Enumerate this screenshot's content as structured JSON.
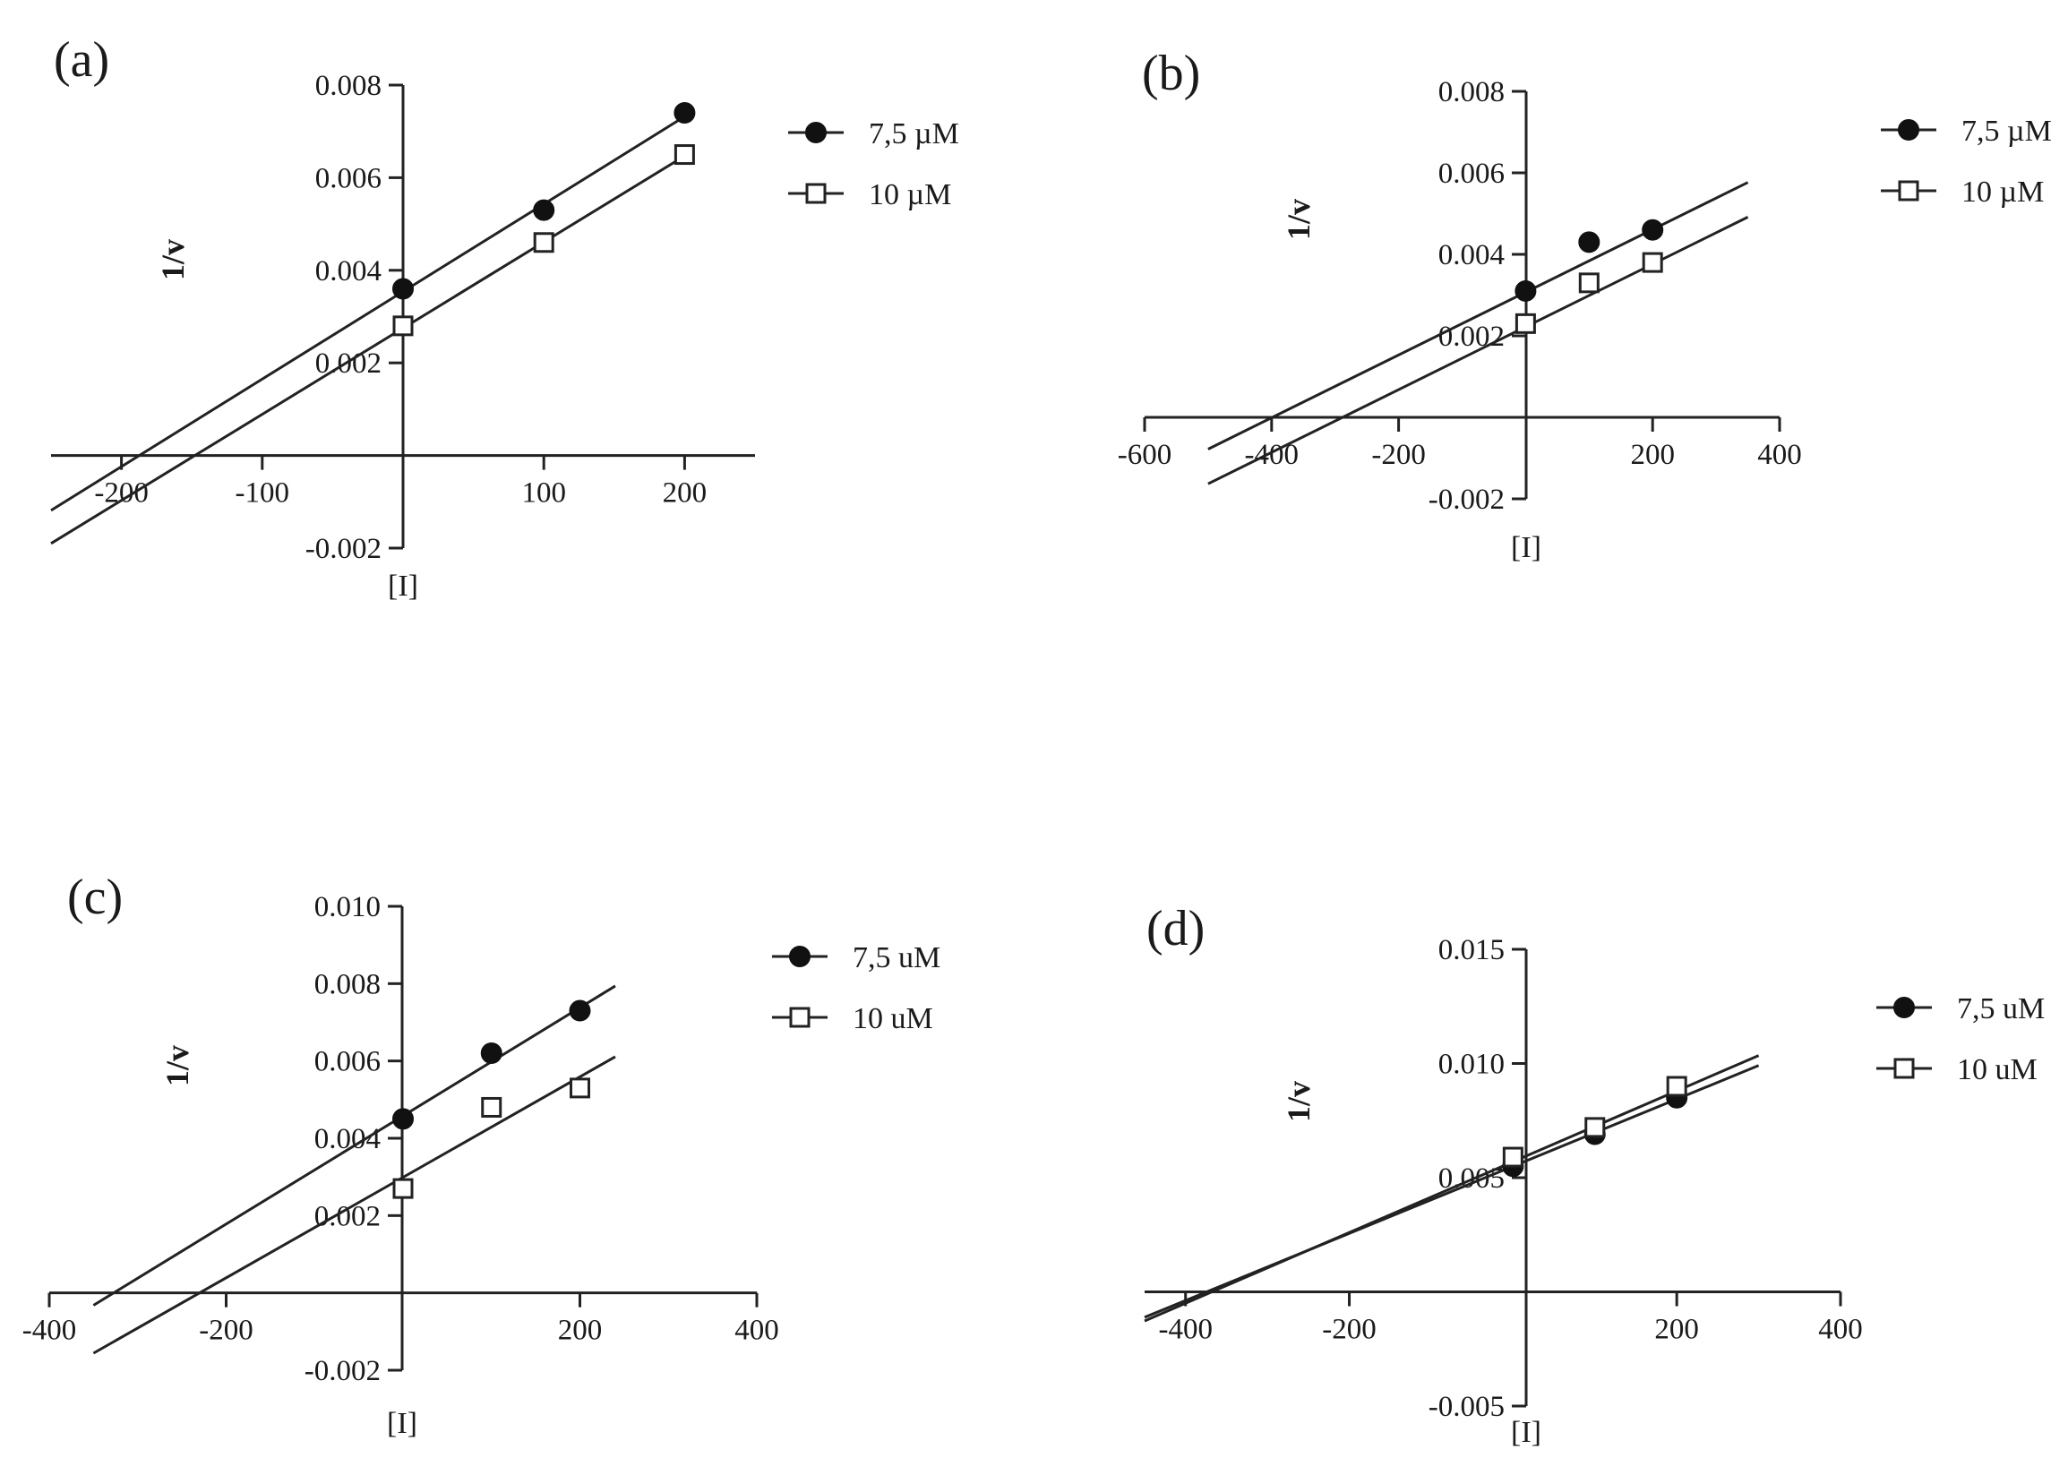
{
  "chart_data": [
    {
      "id": "a",
      "type": "line",
      "label": "(a)",
      "xlabel": "[I]",
      "ylabel": "1/v",
      "xlim": [
        -250,
        250
      ],
      "ylim": [
        -0.002,
        0.008
      ],
      "xticks": [
        -200,
        -100,
        100,
        200
      ],
      "xtick_labels": [
        "-200",
        "-100",
        "100",
        "200"
      ],
      "yticks": [
        -0.002,
        0.002,
        0.004,
        0.006,
        0.008
      ],
      "ytick_labels": [
        "-0.002",
        "0.002",
        "0.004",
        "0.006",
        "0.008"
      ],
      "legend": [
        "7,5 µM",
        "10 µM"
      ],
      "series": [
        {
          "name": "7,5 µM",
          "marker": "filled-circle",
          "x": [
            0,
            100,
            200
          ],
          "y": [
            0.0036,
            0.0053,
            0.0074
          ],
          "fit": {
            "slope": 1.89e-05,
            "intercept": 0.00354,
            "x_from": -250,
            "x_to": 200
          }
        },
        {
          "name": "10 µM",
          "marker": "open-square",
          "x": [
            0,
            100,
            200
          ],
          "y": [
            0.0028,
            0.0046,
            0.0065
          ],
          "fit": {
            "slope": 1.86e-05,
            "intercept": 0.00275,
            "x_from": -250,
            "x_to": 200
          }
        }
      ]
    },
    {
      "id": "b",
      "type": "line",
      "label": "(b)",
      "xlabel": "[I]",
      "ylabel": "1/v",
      "xlim": [
        -600,
        400
      ],
      "ylim": [
        -0.002,
        0.008
      ],
      "xticks": [
        -600,
        -400,
        -200,
        200,
        400
      ],
      "xtick_labels": [
        "-600",
        "-400",
        "-200",
        "200",
        "400"
      ],
      "yticks": [
        -0.002,
        0.002,
        0.004,
        0.006,
        0.008
      ],
      "ytick_labels": [
        "-0.002",
        "0.002",
        "0.004",
        "0.006",
        "0.008"
      ],
      "legend": [
        "7,5 µM",
        "10 µM"
      ],
      "series": [
        {
          "name": "7,5 µM",
          "marker": "filled-circle",
          "x": [
            0,
            100,
            200
          ],
          "y": [
            0.0031,
            0.0043,
            0.0046
          ],
          "fit": {
            "slope": 7.7e-06,
            "intercept": 0.00307,
            "x_from": -500,
            "x_to": 350
          }
        },
        {
          "name": "10 µM",
          "marker": "open-square",
          "x": [
            0,
            100,
            200
          ],
          "y": [
            0.0023,
            0.0033,
            0.0038
          ],
          "fit": {
            "slope": 7.7e-06,
            "intercept": 0.00222,
            "x_from": -500,
            "x_to": 350
          }
        }
      ]
    },
    {
      "id": "c",
      "type": "line",
      "label": "(c)",
      "xlabel": "[I]",
      "ylabel": "1/v",
      "xlim": [
        -400,
        400
      ],
      "ylim": [
        -0.002,
        0.01
      ],
      "xticks": [
        -400,
        -200,
        200,
        400
      ],
      "xtick_labels": [
        "-400",
        "-200",
        "200",
        "400"
      ],
      "yticks": [
        -0.002,
        0.002,
        0.004,
        0.006,
        0.008,
        0.01
      ],
      "ytick_labels": [
        "-0.002",
        "0.002",
        "0.004",
        "0.006",
        "0.008",
        "0.010"
      ],
      "legend": [
        "7,5 uM",
        "10 uM"
      ],
      "series": [
        {
          "name": "7,5 uM",
          "marker": "filled-circle",
          "x": [
            0,
            100,
            200
          ],
          "y": [
            0.0045,
            0.0062,
            0.0073
          ],
          "fit": {
            "slope": 1.4e-05,
            "intercept": 0.00458,
            "x_from": -350,
            "x_to": 240
          }
        },
        {
          "name": "10 uM",
          "marker": "open-square",
          "x": [
            0,
            100,
            200
          ],
          "y": [
            0.0027,
            0.0048,
            0.0053
          ],
          "fit": {
            "slope": 1.3e-05,
            "intercept": 0.00299,
            "x_from": -350,
            "x_to": 240
          }
        }
      ]
    },
    {
      "id": "d",
      "type": "line",
      "label": "(d)",
      "xlabel": "[I]",
      "ylabel": "1/v",
      "xlim": [
        -450,
        400
      ],
      "ylim": [
        -0.005,
        0.015
      ],
      "xticks": [
        -400,
        -200,
        200,
        400
      ],
      "xtick_labels": [
        "-400",
        "-200",
        "200",
        "400"
      ],
      "yticks": [
        -0.005,
        0.005,
        0.01,
        0.015
      ],
      "ytick_labels": [
        "-0.005",
        "0.005",
        "0.010",
        "0.015"
      ],
      "legend": [
        "7,5 uM",
        "10 uM"
      ],
      "series": [
        {
          "name": "7,5 uM",
          "marker": "filled-circle",
          "x": [
            0,
            100,
            200
          ],
          "y": [
            0.0055,
            0.0069,
            0.0085
          ],
          "fit": {
            "slope": 1.47e-05,
            "intercept": 0.0055,
            "x_from": -450,
            "x_to": 300
          }
        },
        {
          "name": "10 uM",
          "marker": "open-square",
          "x": [
            0,
            100,
            200
          ],
          "y": [
            0.0059,
            0.0072,
            0.009
          ],
          "fit": {
            "slope": 1.55e-05,
            "intercept": 0.0057,
            "x_from": -450,
            "x_to": 300
          }
        }
      ]
    }
  ]
}
